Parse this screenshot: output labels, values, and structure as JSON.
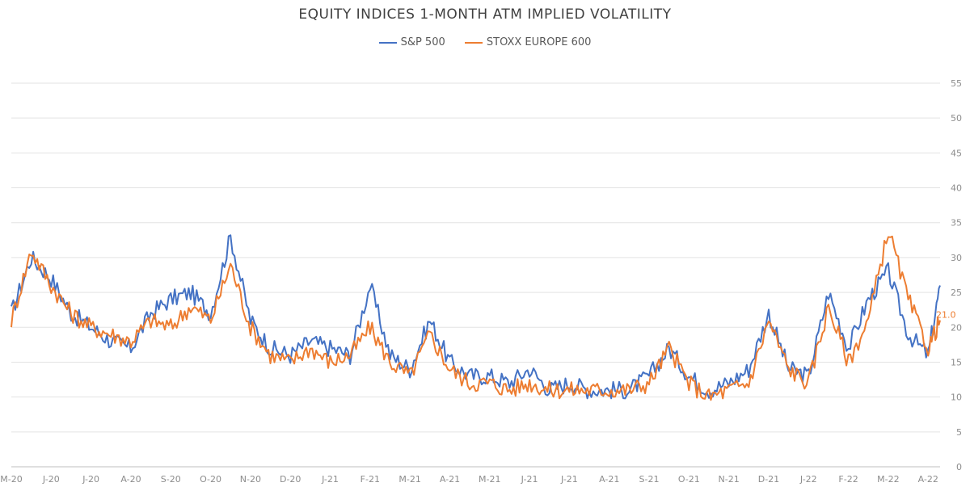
{
  "chart_data": {
    "type": "line",
    "title": "EQUITY INDICES 1-MONTH ATM IMPLIED VOLATILITY",
    "xlabel": "",
    "ylabel": "",
    "ylim": [
      0,
      55
    ],
    "y_ticks": [
      0,
      5,
      10,
      15,
      20,
      25,
      30,
      35,
      40,
      45,
      50,
      55
    ],
    "x_tick_labels": [
      "M-20",
      "J-20",
      "J-20",
      "A-20",
      "S-20",
      "O-20",
      "N-20",
      "D-20",
      "J-21",
      "F-21",
      "M-21",
      "A-21",
      "M-21",
      "J-21",
      "J-21",
      "A-21",
      "S-21",
      "O-21",
      "N-21",
      "D-21",
      "J-22",
      "F-22",
      "M-22",
      "A-22"
    ],
    "x_range": [
      0,
      23.3
    ],
    "grid": true,
    "legend_position": "top",
    "end_value_label": "21.0",
    "x_monthly": [
      0,
      0.5,
      1,
      1.5,
      2,
      2.5,
      3,
      3.5,
      4,
      4.5,
      5,
      5.5,
      6,
      6.5,
      7,
      7.5,
      8,
      8.5,
      9,
      9.5,
      10,
      10.5,
      11,
      11.5,
      12,
      12.5,
      13,
      13.5,
      14,
      14.5,
      15,
      15.5,
      16,
      16.5,
      17,
      17.5,
      18,
      18.5,
      19,
      19.5,
      20,
      20.5,
      21,
      21.5,
      22,
      22.5,
      23,
      23.3
    ],
    "series": [
      {
        "name": "S&P 500",
        "color": "#4472C4",
        "values": [
          22,
          30,
          27,
          22,
          20,
          18,
          17,
          22,
          24,
          25,
          22,
          33,
          21,
          17,
          16,
          18,
          17,
          16,
          26,
          16,
          14,
          21,
          15,
          13,
          13,
          12,
          14,
          11,
          12,
          11,
          11,
          11,
          13,
          17,
          13,
          11,
          12,
          14,
          22,
          14,
          13,
          25,
          17,
          24,
          28,
          19,
          16,
          26
        ]
      },
      {
        "name": "STOXX EUROPE 600",
        "color": "#ED7D31",
        "values": [
          21,
          31,
          26,
          22,
          20,
          19,
          18,
          21,
          20,
          23,
          21,
          29,
          20,
          16,
          15,
          17,
          15,
          16,
          20,
          15,
          13,
          19,
          14,
          12,
          12,
          11,
          12,
          11,
          11,
          11,
          11,
          11,
          12,
          17,
          12,
          10,
          11,
          12,
          21,
          14,
          12,
          23,
          15,
          21,
          34,
          24,
          17,
          21
        ]
      }
    ]
  }
}
